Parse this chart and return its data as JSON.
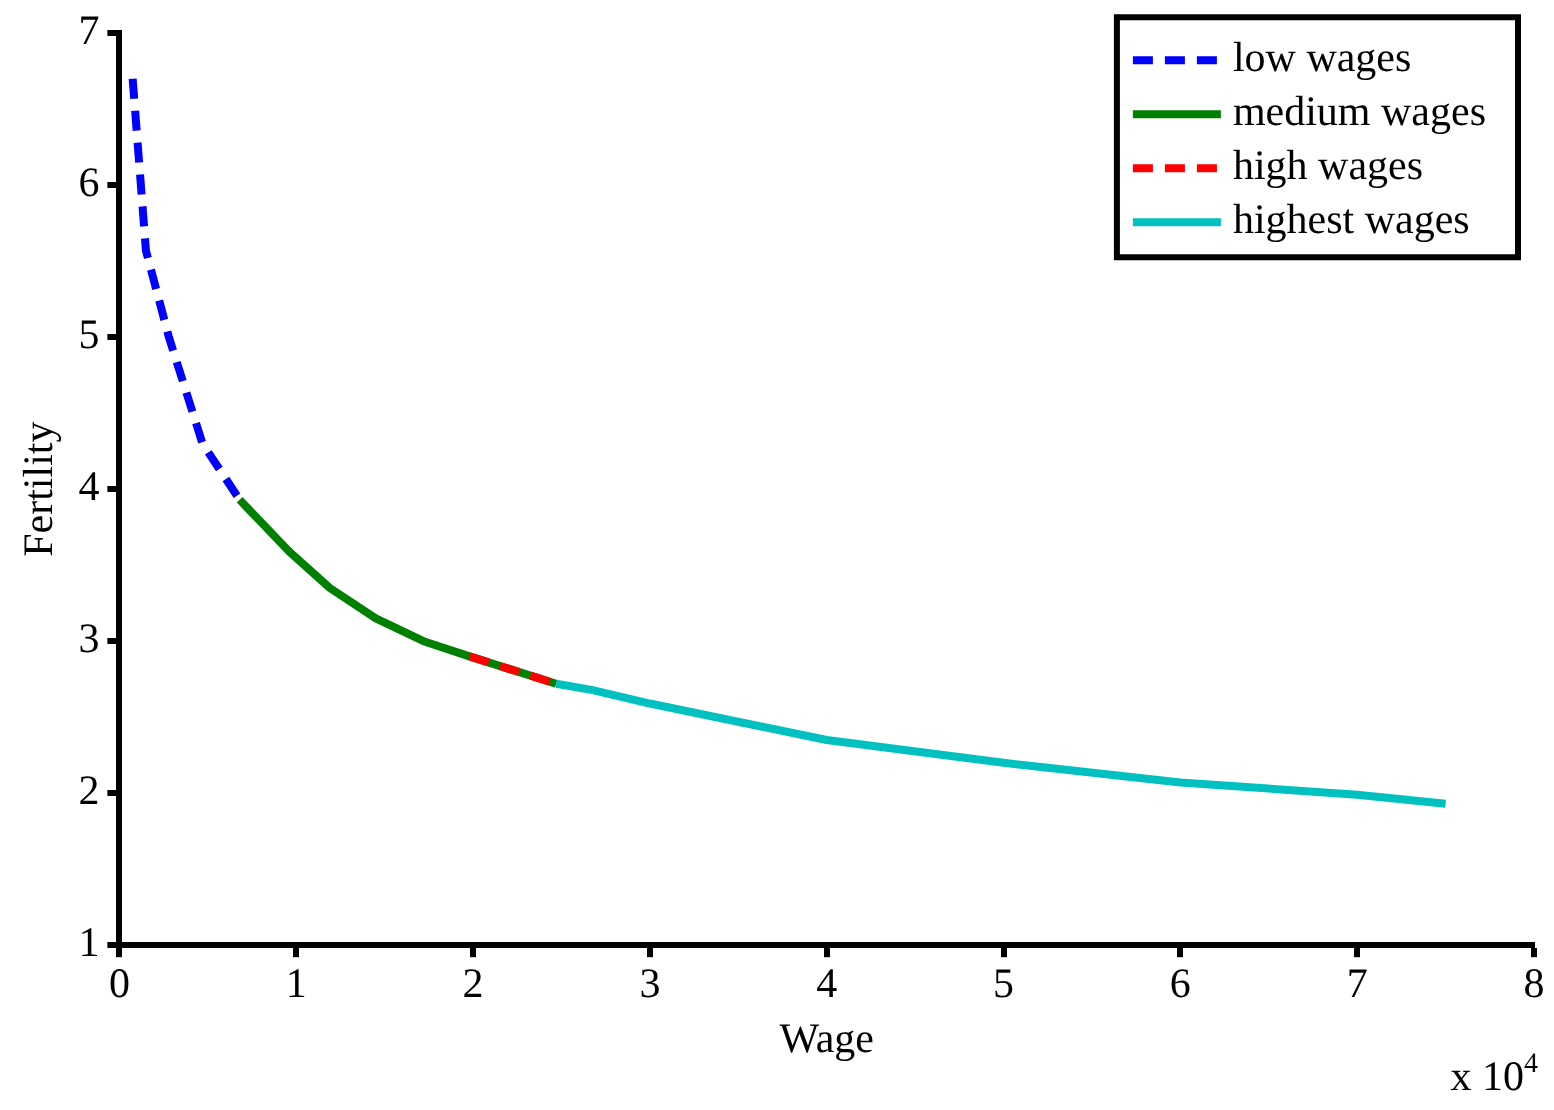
{
  "chart_data": {
    "type": "line",
    "xlabel": "Wage",
    "ylabel": "Fertility",
    "xlim": [
      0,
      8
    ],
    "xticks": [
      0,
      1,
      2,
      3,
      4,
      5,
      6,
      7,
      8
    ],
    "ylim": [
      1,
      7
    ],
    "yticks": [
      1,
      2,
      3,
      4,
      5,
      6,
      7
    ],
    "grid": false,
    "legend": "top right",
    "marker": "none",
    "annotations": [
      "x 10$^{4}$"
    ],
    "series": [
      {
        "name": "low wages",
        "color": "#0000ff",
        "line_style": "dashed",
        "x": [
          0.075,
          0.15,
          0.28,
          0.47,
          0.68
        ],
        "values": [
          6.7,
          5.57,
          5.0,
          4.3,
          3.93
        ]
      },
      {
        "name": "medium wages",
        "color": "#008000",
        "line_style": "solid",
        "x": [
          0.68,
          0.96,
          1.19,
          1.45,
          1.72,
          1.98,
          2.47
        ],
        "values": [
          3.93,
          3.59,
          3.35,
          3.15,
          3.0,
          2.9,
          2.72
        ]
      },
      {
        "name": "high wages",
        "color": "#ff0000",
        "line_style": "dashed",
        "x": [
          1.98,
          2.47
        ],
        "values": [
          2.9,
          2.72
        ]
      },
      {
        "name": "highest wages",
        "color": "#00c0c0",
        "line_style": "solid",
        "x": [
          2.47,
          2.67,
          3.0,
          4.0,
          5.0,
          6.0,
          7.0,
          7.5
        ],
        "values": [
          2.72,
          2.68,
          2.59,
          2.35,
          2.2,
          2.07,
          1.99,
          1.93
        ]
      }
    ]
  }
}
